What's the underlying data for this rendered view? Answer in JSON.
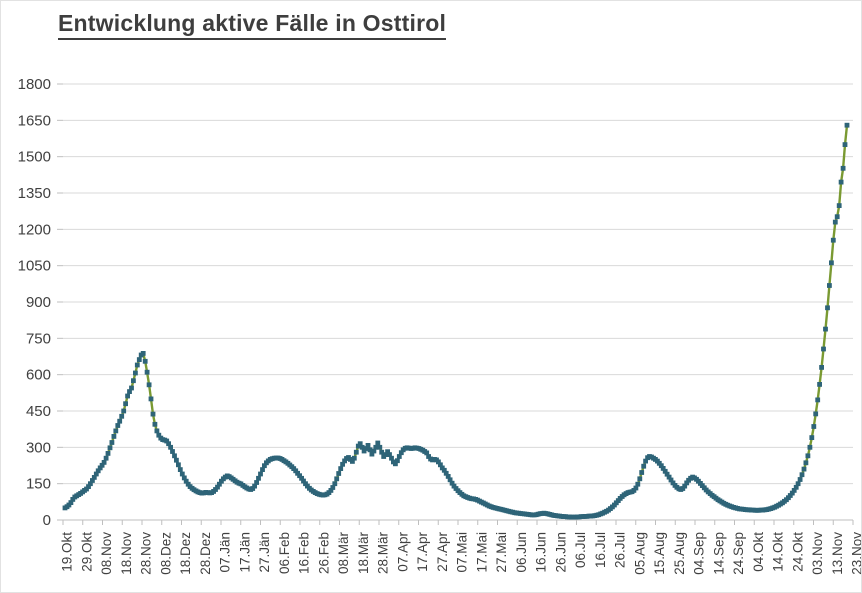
{
  "chart_data": {
    "type": "line",
    "title": "Entwicklung aktive Fälle in Osttirol",
    "xlabel": "",
    "ylabel": "",
    "ylim": [
      0,
      1800
    ],
    "y_tick_step": 150,
    "y_ticks": [
      0,
      150,
      300,
      450,
      600,
      750,
      900,
      1050,
      1200,
      1350,
      1500,
      1650,
      1800
    ],
    "grid": "horizontal",
    "legend": "none",
    "axis_text_color": "#404040",
    "gridline_color": "#d9d9d9",
    "axis_line_color": "#bfbfbf",
    "x_tick_interval_days": 10,
    "x_tick_labels": [
      "19.Okt",
      "29.Okt",
      "08.Nov",
      "18.Nov",
      "28.Nov",
      "08.Dez",
      "18.Dez",
      "28.Dez",
      "07.Jän",
      "17.Jän",
      "27.Jän",
      "06.Feb",
      "16.Feb",
      "26.Feb",
      "08.Mär",
      "18.Mär",
      "28.Mär",
      "07.Apr",
      "17.Apr",
      "27.Apr",
      "07.Mai",
      "17.Mai",
      "27.Mai",
      "06.Jun",
      "16.Jun",
      "26.Jun",
      "06.Jul",
      "16.Jul",
      "26.Jul",
      "05.Aug",
      "15.Aug",
      "25.Aug",
      "04.Sep",
      "14.Sep",
      "24.Sep",
      "04.Okt",
      "14.Okt",
      "24.Okt",
      "03.Nov",
      "13.Nov",
      "23.Nov"
    ],
    "series": [
      {
        "name": "aktive Fälle",
        "marker": "square",
        "marker_color": "#2e6478",
        "line_color": "#7a9a32",
        "values": [
          50,
          55,
          62,
          72,
          85,
          95,
          100,
          105,
          110,
          116,
          122,
          128,
          138,
          150,
          163,
          176,
          190,
          203,
          215,
          226,
          238,
          255,
          275,
          298,
          320,
          345,
          368,
          390,
          408,
          428,
          450,
          480,
          512,
          530,
          545,
          575,
          607,
          640,
          662,
          681,
          688,
          655,
          610,
          558,
          500,
          437,
          395,
          368,
          350,
          338,
          332,
          330,
          326,
          315,
          300,
          283,
          265,
          247,
          228,
          208,
          190,
          174,
          160,
          148,
          138,
          131,
          125,
          120,
          116,
          113,
          111,
          112,
          114,
          113,
          112,
          113,
          118,
          126,
          136,
          148,
          160,
          170,
          177,
          182,
          179,
          174,
          168,
          162,
          156,
          152,
          149,
          143,
          137,
          132,
          128,
          126,
          130,
          140,
          155,
          172,
          190,
          208,
          224,
          236,
          244,
          250,
          253,
          255,
          256,
          256,
          254,
          250,
          245,
          240,
          234,
          227,
          220,
          212,
          203,
          193,
          183,
          172,
          161,
          150,
          140,
          131,
          124,
          118,
          113,
          109,
          106,
          104,
          103,
          104,
          107,
          113,
          122,
          134,
          150,
          170,
          192,
          212,
          230,
          244,
          254,
          258,
          250,
          242,
          255,
          280,
          305,
          315,
          300,
          285,
          295,
          308,
          290,
          272,
          285,
          300,
          318,
          300,
          280,
          262,
          270,
          282,
          270,
          255,
          240,
          232,
          245,
          262,
          278,
          290,
          296,
          298,
          297,
          295,
          296,
          298,
          297,
          295,
          292,
          288,
          283,
          277,
          262,
          252,
          248,
          250,
          248,
          240,
          228,
          215,
          205,
          193,
          180,
          166,
          152,
          140,
          130,
          121,
          113,
          106,
          100,
          96,
          93,
          90,
          88,
          87,
          85,
          82,
          78,
          74,
          70,
          66,
          62,
          58,
          55,
          52,
          50,
          48,
          46,
          44,
          42,
          40,
          38,
          36,
          34,
          32,
          30,
          29,
          28,
          27,
          26,
          25,
          24,
          23,
          22,
          21,
          21,
          22,
          24,
          26,
          27,
          28,
          27,
          25,
          23,
          21,
          19,
          18,
          17,
          16,
          15,
          14,
          14,
          13,
          13,
          12,
          12,
          12,
          13,
          13,
          14,
          14,
          15,
          15,
          16,
          16,
          17,
          18,
          20,
          22,
          25,
          28,
          32,
          36,
          41,
          47,
          54,
          62,
          71,
          80,
          89,
          97,
          104,
          109,
          113,
          115,
          117,
          122,
          132,
          148,
          170,
          196,
          222,
          243,
          257,
          262,
          260,
          255,
          250,
          243,
          234,
          224,
          213,
          201,
          189,
          177,
          165,
          153,
          143,
          135,
          129,
          126,
          130,
          140,
          153,
          164,
          172,
          177,
          174,
          168,
          160,
          151,
          142,
          133,
          124,
          116,
          109,
          102,
          96,
          90,
          84,
          79,
          74,
          69,
          65,
          61,
          58,
          55,
          52,
          50,
          48,
          46,
          45,
          44,
          43,
          42,
          42,
          41,
          41,
          40,
          40,
          40,
          41,
          41,
          42,
          43,
          45,
          47,
          50,
          53,
          57,
          61,
          66,
          71,
          77,
          84,
          92,
          101,
          111,
          122,
          135,
          150,
          167,
          187,
          210,
          236,
          265,
          300,
          340,
          386,
          438,
          496,
          560,
          630,
          706,
          788,
          876,
          968,
          1062,
          1155,
          1230,
          1252,
          1298,
          1395,
          1452,
          1550,
          1630
        ]
      }
    ]
  }
}
